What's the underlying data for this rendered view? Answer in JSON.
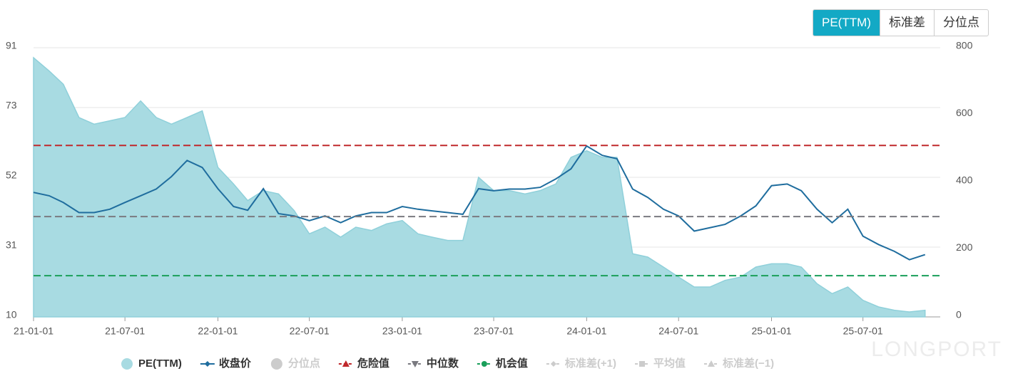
{
  "tabs": {
    "items": [
      "PE(TTM)",
      "标准差",
      "分位点"
    ],
    "active": 0
  },
  "watermark": "LONGPORT",
  "chart_data": {
    "type": "line",
    "x": [
      "21-01-01",
      "21-02-01",
      "21-03-01",
      "21-04-01",
      "21-05-01",
      "21-06-01",
      "21-07-01",
      "21-08-01",
      "21-09-01",
      "21-10-01",
      "21-11-01",
      "21-12-01",
      "22-01-01",
      "22-02-01",
      "22-03-01",
      "22-04-01",
      "22-05-01",
      "22-06-01",
      "22-07-01",
      "22-08-01",
      "22-09-01",
      "22-10-01",
      "22-11-01",
      "22-12-01",
      "23-01-01",
      "23-02-01",
      "23-03-01",
      "23-04-01",
      "23-05-01",
      "23-06-01",
      "23-07-01",
      "23-08-01",
      "23-09-01",
      "23-10-01",
      "23-11-01",
      "23-12-01",
      "24-01-01",
      "24-02-01",
      "24-03-01",
      "24-04-01",
      "24-05-01",
      "24-06-01",
      "24-07-01",
      "24-08-01",
      "24-09-01",
      "24-10-01",
      "24-11-01",
      "24-12-01",
      "25-01-01",
      "25-02-01",
      "25-03-01",
      "25-04-01",
      "25-05-01",
      "25-06-01",
      "25-07-01",
      "25-08-01",
      "25-09-01",
      "25-10-01",
      "25-11-01"
    ],
    "series": [
      {
        "name": "PE(TTM)",
        "color": "#a8dbe2",
        "area": true,
        "values": [
          88,
          84,
          80,
          70,
          68,
          69,
          70,
          75,
          70,
          68,
          70,
          72,
          55,
          50,
          45,
          48,
          47,
          42,
          35,
          37,
          34,
          37,
          36,
          38,
          39,
          35,
          34,
          33,
          33,
          52,
          48,
          48,
          47,
          48,
          50,
          58,
          60,
          58,
          58,
          29,
          28,
          25,
          22,
          19,
          19,
          21,
          22,
          25,
          26,
          26,
          25,
          20,
          17,
          19,
          15,
          13,
          12,
          11.5,
          12
        ]
      },
      {
        "name": "收盘价",
        "color": "#1f6d9e",
        "axis": "y2",
        "values": [
          370,
          360,
          340,
          310,
          310,
          320,
          340,
          360,
          380,
          417,
          465,
          444,
          381,
          328,
          317,
          381,
          307,
          300,
          286,
          300,
          280,
          300,
          310,
          310,
          328,
          320,
          315,
          310,
          305,
          381,
          375,
          380,
          380,
          385,
          410,
          440,
          508,
          480,
          470,
          380,
          355,
          320,
          300,
          255,
          265,
          275,
          300,
          330,
          390,
          395,
          375,
          320,
          280,
          320,
          240,
          215,
          195,
          170,
          185
        ]
      }
    ],
    "reference_lines": [
      {
        "name": "危险值",
        "value": 61.6,
        "color": "#c0282b",
        "marker": "triangle-up"
      },
      {
        "name": "中位数",
        "value": 40.2,
        "color": "#7a7a80",
        "marker": "triangle-down"
      },
      {
        "name": "机会值",
        "value": 22.4,
        "color": "#1a9f5a",
        "marker": "circle"
      }
    ],
    "legend_extra": [
      {
        "name": "分位点",
        "after": 1,
        "marker": "circle"
      },
      {
        "name": "标准差(+1)",
        "marker": "diamond"
      },
      {
        "name": "平均值",
        "marker": "square"
      },
      {
        "name": "标准差(−1)",
        "marker": "triangle-up"
      }
    ],
    "xlim": [
      "21-01-01",
      "25-12-01"
    ],
    "xticks": [
      "21-01-01",
      "21-07-01",
      "22-01-01",
      "22-07-01",
      "23-01-01",
      "23-07-01",
      "24-01-01",
      "24-07-01",
      "25-01-01",
      "25-07-01"
    ],
    "ylim": [
      10,
      91
    ],
    "yticks": [
      10,
      31,
      52,
      73,
      91
    ],
    "y2lim": [
      0,
      800
    ],
    "y2ticks": [
      0,
      200,
      400,
      600,
      800
    ],
    "grid": true
  }
}
